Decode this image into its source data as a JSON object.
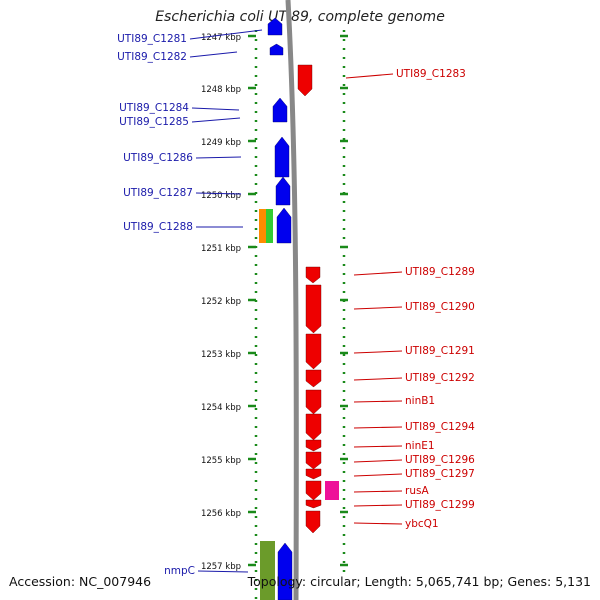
{
  "title": "Escherichia coli UTI89, complete genome",
  "footer": {
    "accession": "Accession: NC_007946",
    "summary": "Topology: circular; Length: 5,065,741 bp; Genes: 5,131"
  },
  "colors": {
    "forward_gene": "#0000ee",
    "reverse_gene": "#ee0000",
    "forward_label": "#1a1aaa",
    "reverse_label": "#cc0000",
    "special_orange": "#ff8c00",
    "special_green": "#33cc33",
    "special_magenta": "#ee1199",
    "special_olive": "#6b9b2a",
    "ruler_dots": "#1a8a1a"
  },
  "ticks": [
    "1247 kbp",
    "1248 kbp",
    "1249 kbp",
    "1250 kbp",
    "1251 kbp",
    "1252 kbp",
    "1253 kbp",
    "1254 kbp",
    "1255 kbp",
    "1256 kbp",
    "1257 kbp"
  ],
  "genes_forward": [
    "UTI89_C1281",
    "UTI89_C1282",
    "UTI89_C1284",
    "UTI89_C1285",
    "UTI89_C1286",
    "UTI89_C1287",
    "UTI89_C1288",
    "nmpC"
  ],
  "genes_reverse": [
    "UTI89_C1283",
    "UTI89_C1289",
    "UTI89_C1290",
    "UTI89_C1291",
    "UTI89_C1292",
    "ninB1",
    "UTI89_C1294",
    "ninE1",
    "UTI89_C1296",
    "UTI89_C1297",
    "rusA",
    "UTI89_C1299",
    "ybcQ1"
  ]
}
